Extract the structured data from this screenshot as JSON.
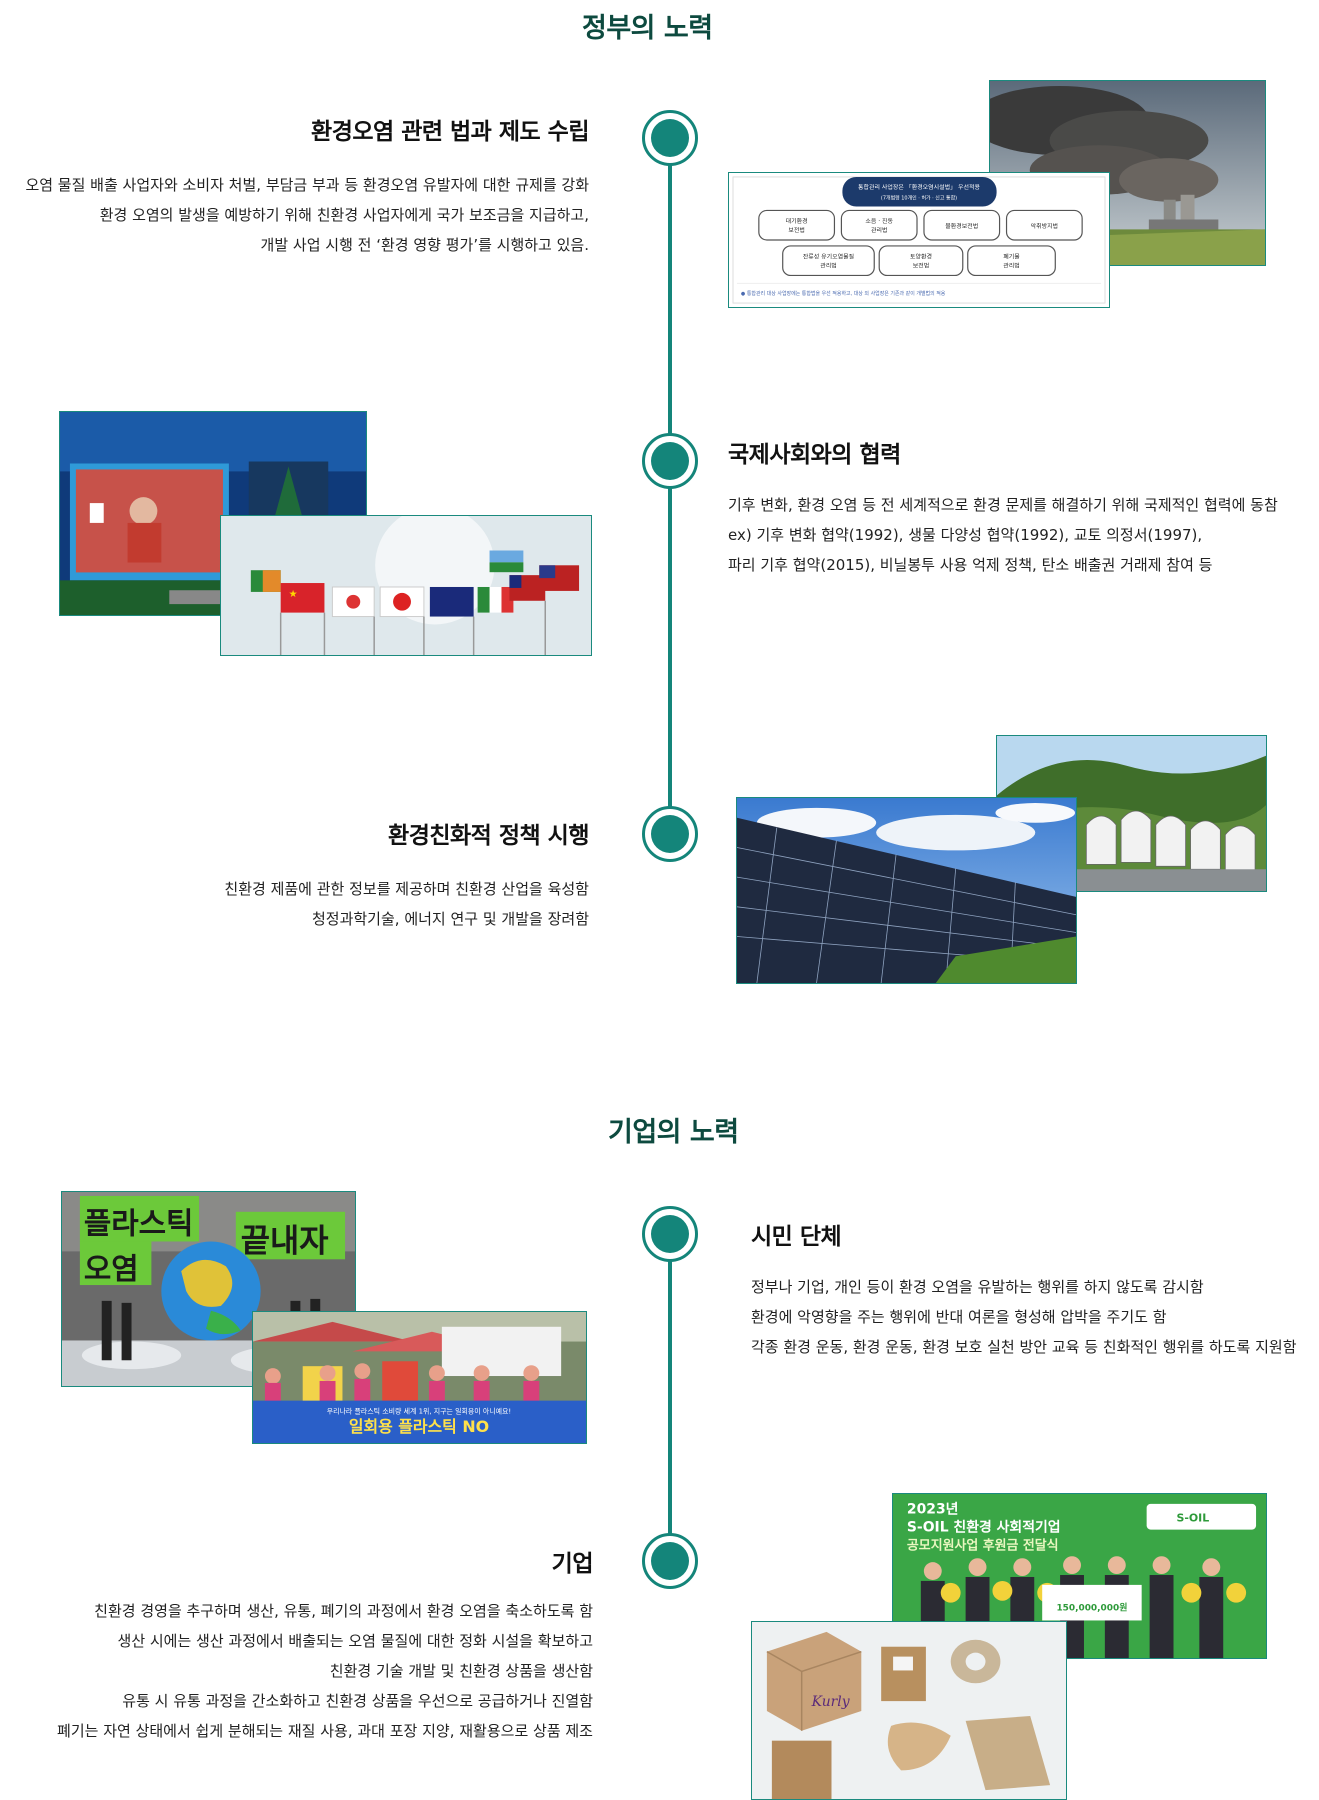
{
  "government": {
    "title": "정부의 노력",
    "items": [
      {
        "title": "환경오염 관련 법과 제도 수립",
        "lines": [
          "오염 물질 배출 사업자와 소비자 처벌, 부담금 부과 등 환경오염 유발자에 대한 규제를 강화",
          "환경 오염의 발생을 예방하기 위해 친환경 사업자에게 국가 보조금을 지급하고,",
          "개발 사업 시행 전 ‘환경 영향 평가’를 시행하고 있음."
        ],
        "diagram": {
          "header": "통합관리 사업장은 「환경오염시설법」 우선적용",
          "subheader": "(7개법령 10개인 · 허가 · 신고 통합)",
          "boxes_row1": [
            "대기환경\n보전법",
            "소음 · 진동\n관리법",
            "물환경보전법",
            "악취방지법"
          ],
          "boxes_row2": [
            "잔류성 유기오염물질\n관리법",
            "토양환경\n보전법",
            "폐기물\n관리법"
          ],
          "footnote": "● 통합관리 대상 사업장에는 통합법을 우선 적용하고, 대상 외 사업장은 기존과 같이 개별법의 적용"
        }
      },
      {
        "title": "국제사회와의 협력",
        "lines": [
          "기후 변화, 환경 오염 등 전 세계적으로 환경 문제를 해결하기 위해 국제적인 협력에 동참",
          " ex) 기후 변화 협약(1992), 생물 다양성 협약(1992), 교토 의정서(1997),",
          "파리 기후 협약(2015), 비닐봉투 사용 억제 정책, 탄소 배출권 거래제 참여 등"
        ]
      },
      {
        "title": "환경친화적 정책 시행",
        "lines": [
          "친환경 제품에 관한 정보를 제공하며 친환경 산업을 육성함",
          "청정과학기술, 에너지 연구 및 개발을 장려함"
        ]
      }
    ]
  },
  "business": {
    "title": "기업의 노력",
    "items": [
      {
        "title": "시민 단체",
        "lines": [
          "정부나 기업, 개인 등이 환경 오염을 유발하는 행위를 하지 않도록 감시함",
          "환경에 악영향을 주는 행위에 반대 여론을 형성해 압박을 주기도 함",
          "각종 환경 운동, 환경 운동, 환경 보호 실천 방안 교육 등 친화적인 행위를 하도록 지원함"
        ],
        "poster_text": {
          "big1": "플라스틱",
          "big2": "끝내자",
          "big3": "오염",
          "banner": "일회용 플라스틱 NO",
          "banner_small": "우리나라 플라스틱 소비량 세계 1위, 지구는 일회용이 아니예요!"
        }
      },
      {
        "title": "기업",
        "lines": [
          "친환경 경영을 추구하며 생산, 유통, 폐기의 과정에서 환경 오염을 축소하도록 함",
          "생산 시에는 생산 과정에서 배출되는 오염 물질에 대한 정화 시설을 확보하고",
          "친환경 기술 개발 및 친환경 상품을 생산함",
          "유통 시 유통 과정을 간소화하고 친환경 상품을 우선으로 공급하거나 진열함",
          "폐기는 자연 상태에서 쉽게 분해되는 재질 사용, 과대 포장 지양, 재활용으로 상품 제조"
        ],
        "event_text": {
          "year": "2023년",
          "headline": "S-OIL 친환경 사회적기업",
          "sub": "공모지원사업 후원금 전달식",
          "logo": "S-OIL",
          "check": "150,000,000원",
          "box_brand": "Kurly"
        }
      }
    ]
  },
  "colors": {
    "accent": "#14857a",
    "title": "#0d4a3f"
  }
}
